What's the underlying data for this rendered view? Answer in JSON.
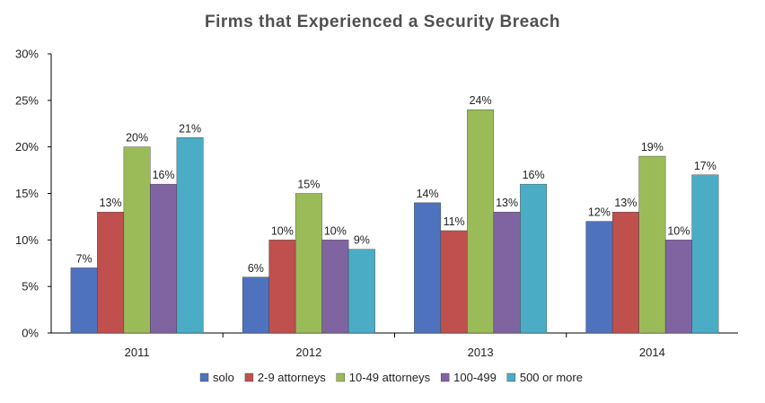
{
  "chart_data": {
    "type": "bar",
    "title": "Firms that Experienced a Security Breach",
    "xlabel": "",
    "ylabel": "",
    "categories": [
      "2011",
      "2012",
      "2013",
      "2014"
    ],
    "ylim": [
      0,
      30
    ],
    "yticks": [
      "0%",
      "5%",
      "10%",
      "15%",
      "20%",
      "25%",
      "30%"
    ],
    "ytick_values": [
      0,
      5,
      10,
      15,
      20,
      25,
      30
    ],
    "value_suffix": "%",
    "grid": false,
    "legend_position": "bottom",
    "series": [
      {
        "name": "solo",
        "color": "#4F72BE",
        "values": [
          7,
          6,
          14,
          12
        ]
      },
      {
        "name": "2-9 attorneys",
        "color": "#C0504D",
        "values": [
          13,
          10,
          11,
          13
        ]
      },
      {
        "name": "10-49 attorneys",
        "color": "#9BBB59",
        "values": [
          20,
          15,
          24,
          19
        ]
      },
      {
        "name": "100-499",
        "color": "#8064A2",
        "values": [
          16,
          10,
          13,
          10
        ]
      },
      {
        "name": "500 or more",
        "color": "#4BACC6",
        "values": [
          21,
          9,
          16,
          17
        ]
      }
    ]
  }
}
